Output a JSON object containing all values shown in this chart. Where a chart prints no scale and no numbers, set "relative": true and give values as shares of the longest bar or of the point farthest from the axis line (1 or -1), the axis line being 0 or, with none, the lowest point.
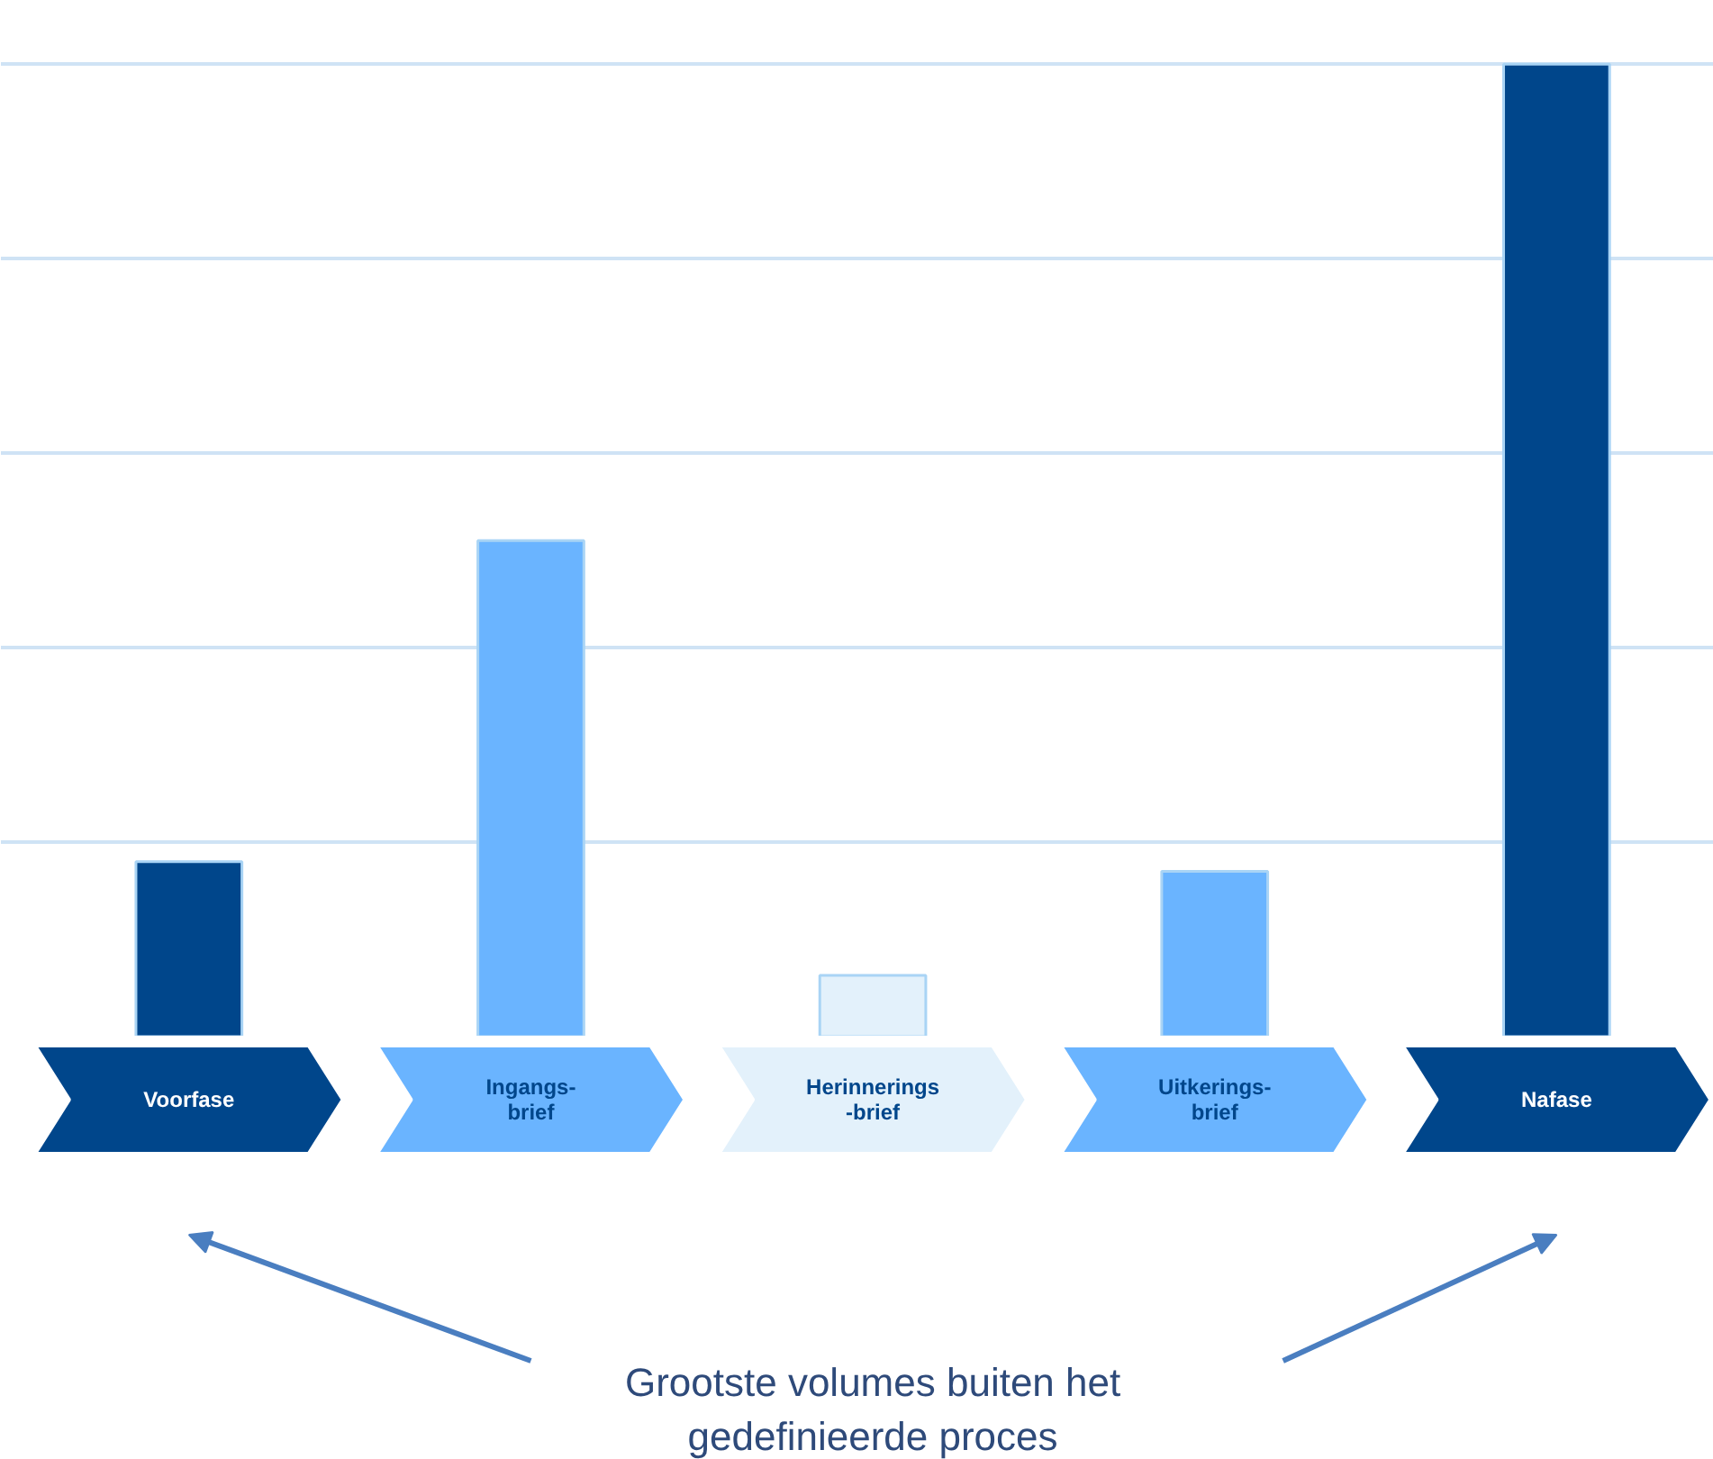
{
  "chart_data": {
    "type": "bar",
    "relative": true,
    "grid": "y",
    "categories": [
      "Voorfase",
      "Ingangs-\nbrief",
      "Herinnerings\n-brief",
      "Uitkerings-\nbrief",
      "Nafase"
    ],
    "values": [
      0.18,
      0.51,
      0.063,
      0.17,
      1.0
    ],
    "colors": [
      "#00468b",
      "#6ab4ff",
      "#e3f1fb",
      "#6ab4ff",
      "#00468b"
    ],
    "annotations": [
      "Grootste volumes buiten het\ngedefinieerde proces"
    ]
  }
}
